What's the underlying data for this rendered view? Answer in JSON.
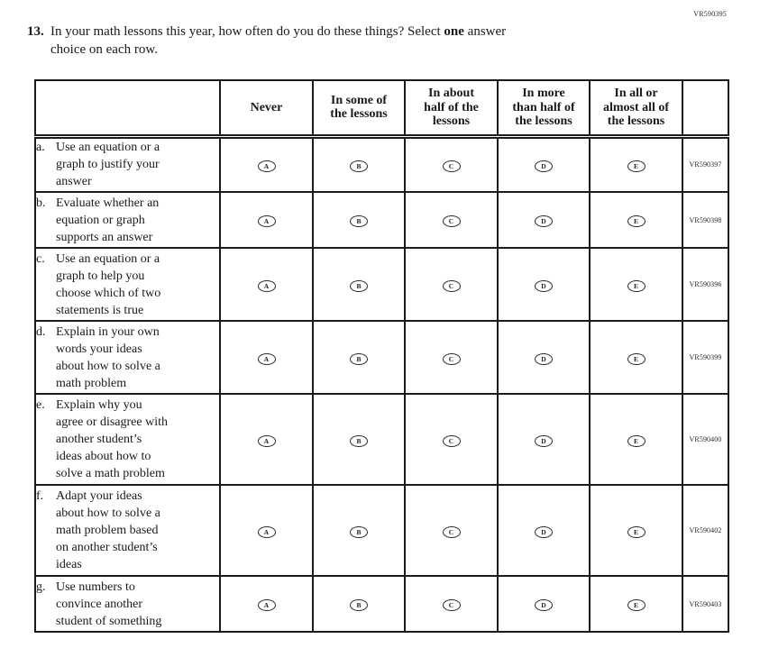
{
  "page": {
    "form_code": "VR590395"
  },
  "question": {
    "number": "13.",
    "line1_pre": "In your math lessons this year, how often do you do these things? Select ",
    "line1_bold": "one",
    "line1_post": " answer",
    "line2": "choice on each row."
  },
  "table": {
    "option_letters": [
      "A",
      "B",
      "C",
      "D",
      "E"
    ],
    "columns": [
      "Never",
      "In some of\nthe lessons",
      "In about\nhalf of the\nlessons",
      "In more\nthan half of\nthe lessons",
      "In all or\nalmost all of\nthe lessons"
    ],
    "rows": [
      {
        "label": "a.",
        "text": "Use an equation or a\ngraph to justify your\nanswer",
        "code": "VR590397"
      },
      {
        "label": "b.",
        "text": "Evaluate whether an\nequation or graph\nsupports an answer",
        "code": "VR590398"
      },
      {
        "label": "c.",
        "text": "Use an equation or a\ngraph to help you\nchoose which of two\nstatements is true",
        "code": "VR590396"
      },
      {
        "label": "d.",
        "text": "Explain in your own\nwords your ideas\nabout how to solve a\nmath problem",
        "code": "VR590399"
      },
      {
        "label": "e.",
        "text": "Explain why you\nagree or disagree with\nanother student’s\nideas about how to\nsolve a math problem",
        "code": "VR590400"
      },
      {
        "label": "f.",
        "text": "Adapt your ideas\nabout how to solve a\nmath problem based\non another student’s\nideas",
        "code": "VR590402"
      },
      {
        "label": "g.",
        "text": "Use numbers to\nconvince another\nstudent of something",
        "code": "VR590403"
      }
    ]
  }
}
